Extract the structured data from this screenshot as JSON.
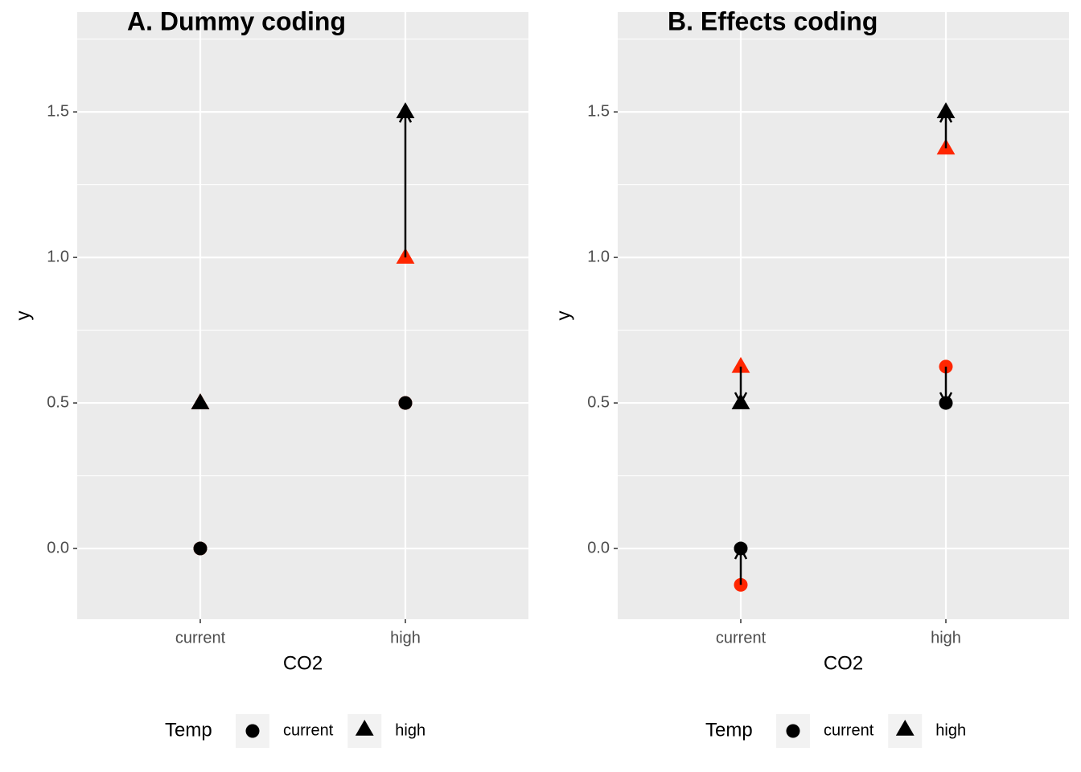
{
  "chart_data": [
    {
      "type": "scatter",
      "title": "A. Dummy coding",
      "x_label": "CO2",
      "y_label": "y",
      "legend_title": "Temp",
      "categories": [
        "current",
        "high"
      ],
      "ylim": [
        -0.243,
        1.843
      ],
      "yticks": [
        {
          "value": 0,
          "label": "0.0"
        },
        0.5,
        {
          "value": 1,
          "label": "1.0"
        },
        1.5
      ],
      "grid": true,
      "legend_position": "bottom",
      "series": [
        {
          "name": "current",
          "shape": "circle",
          "color": "#000000",
          "values": [
            0,
            0.5
          ],
          "estimates": [
            0,
            0.5
          ],
          "estimate_color": "#ff2600"
        },
        {
          "name": "high",
          "shape": "triangle",
          "color": "#000000",
          "values": [
            0.5,
            1.5
          ],
          "estimates": [
            0.5,
            1.0
          ],
          "estimate_color": "#ff2600"
        }
      ]
    },
    {
      "type": "scatter",
      "title": "B. Effects coding",
      "x_label": "CO2",
      "y_label": "y",
      "legend_title": "Temp",
      "categories": [
        "current",
        "high"
      ],
      "ylim": [
        -0.243,
        1.843
      ],
      "yticks": [
        {
          "value": 0,
          "label": "0.0"
        },
        0.5,
        {
          "value": 1,
          "label": "1.0"
        },
        1.5
      ],
      "grid": true,
      "legend_position": "bottom",
      "series": [
        {
          "name": "current",
          "shape": "circle",
          "color": "#000000",
          "values": [
            0,
            0.5
          ],
          "estimates": [
            -0.125,
            0.625
          ],
          "estimate_color": "#ff2600"
        },
        {
          "name": "high",
          "shape": "triangle",
          "color": "#000000",
          "values": [
            0.5,
            1.5
          ],
          "estimates": [
            0.625,
            1.375
          ],
          "estimate_color": "#ff2600"
        }
      ]
    }
  ]
}
